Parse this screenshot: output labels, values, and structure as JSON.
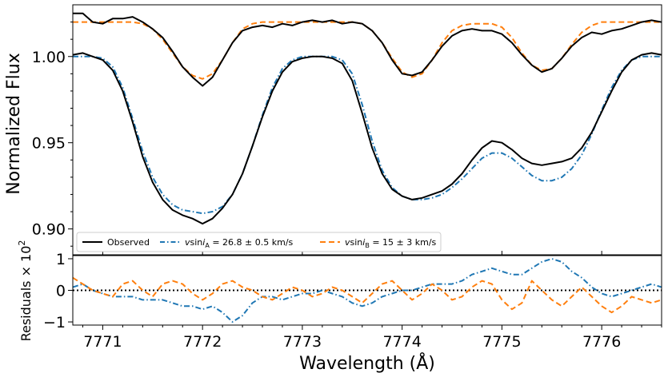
{
  "chart_data": [
    {
      "type": "line",
      "panel": "main",
      "ylabel": "Normalized Flux",
      "xlim": [
        7770.7,
        7776.6
      ],
      "ylim": [
        0.885,
        1.03
      ],
      "yticks": [
        {
          "value": 0.9,
          "label": "0.90"
        },
        {
          "value": 0.95,
          "label": "0.95"
        },
        {
          "value": 1.0,
          "label": "1.00"
        }
      ],
      "legend": {
        "placement": "bottom",
        "entries": [
          {
            "label": "Observed",
            "color": "#000000",
            "style": "solid"
          },
          {
            "label_main": "v",
            "label_sin": "sin",
            "label_i": "i",
            "label_sub": "A",
            "label_rest": " = 26.8 ± 0.5 km/s",
            "color": "#1f77b4",
            "style": "dashdot"
          },
          {
            "label_main": "v",
            "label_sin": "sin",
            "label_i": "i",
            "label_sub": "B",
            "label_rest": " = 15 ± 3 km/s",
            "color": "#ff7f0e",
            "style": "dashed"
          }
        ]
      },
      "series": [
        {
          "name": "Observed (upper)",
          "color": "#000000",
          "x": [
            7770.7,
            7770.8,
            7770.9,
            7771.0,
            7771.1,
            7771.2,
            7771.3,
            7771.4,
            7771.5,
            7771.6,
            7771.7,
            7771.8,
            7771.9,
            7772.0,
            7772.1,
            7772.2,
            7772.3,
            7772.4,
            7772.5,
            7772.6,
            7772.7,
            7772.8,
            7772.9,
            7773.0,
            7773.1,
            7773.2,
            7773.3,
            7773.4,
            7773.5,
            7773.6,
            7773.7,
            7773.8,
            7773.9,
            7774.0,
            7774.1,
            7774.2,
            7774.3,
            7774.4,
            7774.5,
            7774.6,
            7774.7,
            7774.8,
            7774.9,
            7775.0,
            7775.1,
            7775.2,
            7775.3,
            7775.4,
            7775.5,
            7775.6,
            7775.7,
            7775.8,
            7775.9,
            7776.0,
            7776.1,
            7776.2,
            7776.3,
            7776.4,
            7776.5,
            7776.6
          ],
          "y": [
            1.025,
            1.025,
            1.02,
            1.019,
            1.022,
            1.022,
            1.023,
            1.02,
            1.016,
            1.011,
            1.003,
            0.994,
            0.988,
            0.983,
            0.988,
            0.998,
            1.008,
            1.015,
            1.017,
            1.018,
            1.017,
            1.019,
            1.018,
            1.02,
            1.021,
            1.02,
            1.021,
            1.019,
            1.02,
            1.019,
            1.015,
            1.008,
            0.998,
            0.99,
            0.989,
            0.991,
            0.998,
            1.006,
            1.012,
            1.015,
            1.016,
            1.015,
            1.015,
            1.013,
            1.008,
            1.001,
            0.995,
            0.991,
            0.993,
            0.999,
            1.006,
            1.011,
            1.014,
            1.013,
            1.015,
            1.016,
            1.018,
            1.02,
            1.021,
            1.02
          ]
        },
        {
          "name": "Observed (lower)",
          "color": "#000000",
          "x": [
            7770.7,
            7770.8,
            7770.9,
            7771.0,
            7771.1,
            7771.2,
            7771.3,
            7771.4,
            7771.5,
            7771.6,
            7771.7,
            7771.8,
            7771.9,
            7772.0,
            7772.1,
            7772.2,
            7772.3,
            7772.4,
            7772.5,
            7772.6,
            7772.7,
            7772.8,
            7772.9,
            7773.0,
            7773.1,
            7773.2,
            7773.3,
            7773.4,
            7773.5,
            7773.6,
            7773.7,
            7773.8,
            7773.9,
            7774.0,
            7774.1,
            7774.2,
            7774.3,
            7774.4,
            7774.5,
            7774.6,
            7774.7,
            7774.8,
            7774.9,
            7775.0,
            7775.1,
            7775.2,
            7775.3,
            7775.4,
            7775.5,
            7775.6,
            7775.7,
            7775.8,
            7775.9,
            7776.0,
            7776.1,
            7776.2,
            7776.3,
            7776.4,
            7776.5,
            7776.6
          ],
          "y": [
            1.001,
            1.002,
            1.0,
            0.998,
            0.992,
            0.98,
            0.962,
            0.942,
            0.927,
            0.917,
            0.911,
            0.908,
            0.906,
            0.903,
            0.906,
            0.912,
            0.92,
            0.932,
            0.948,
            0.965,
            0.98,
            0.991,
            0.997,
            0.999,
            1.0,
            1.0,
            0.999,
            0.996,
            0.986,
            0.967,
            0.947,
            0.932,
            0.923,
            0.919,
            0.917,
            0.918,
            0.92,
            0.922,
            0.926,
            0.932,
            0.94,
            0.947,
            0.951,
            0.95,
            0.946,
            0.941,
            0.938,
            0.937,
            0.938,
            0.939,
            0.941,
            0.947,
            0.956,
            0.968,
            0.98,
            0.991,
            0.998,
            1.001,
            1.002,
            1.001
          ]
        },
        {
          "name": "vsini_A fit",
          "color": "#1f77b4",
          "x": [
            7770.7,
            7770.8,
            7770.9,
            7771.0,
            7771.1,
            7771.2,
            7771.3,
            7771.4,
            7771.5,
            7771.6,
            7771.7,
            7771.8,
            7771.9,
            7772.0,
            7772.1,
            7772.2,
            7772.3,
            7772.4,
            7772.5,
            7772.6,
            7772.7,
            7772.8,
            7772.9,
            7773.0,
            7773.1,
            7773.2,
            7773.3,
            7773.4,
            7773.5,
            7773.6,
            7773.7,
            7773.8,
            7773.9,
            7774.0,
            7774.1,
            7774.2,
            7774.3,
            7774.4,
            7774.5,
            7774.6,
            7774.7,
            7774.8,
            7774.9,
            7775.0,
            7775.1,
            7775.2,
            7775.3,
            7775.4,
            7775.5,
            7775.6,
            7775.7,
            7775.8,
            7775.9,
            7776.0,
            7776.1,
            7776.2,
            7776.3,
            7776.4,
            7776.5,
            7776.6
          ],
          "y": [
            1.0,
            1.0,
            1.0,
            0.999,
            0.994,
            0.982,
            0.964,
            0.945,
            0.93,
            0.92,
            0.914,
            0.911,
            0.91,
            0.909,
            0.91,
            0.913,
            0.92,
            0.932,
            0.948,
            0.966,
            0.982,
            0.993,
            0.998,
            1.0,
            1.0,
            1.0,
            1.0,
            0.998,
            0.99,
            0.972,
            0.951,
            0.934,
            0.924,
            0.919,
            0.917,
            0.917,
            0.918,
            0.92,
            0.924,
            0.929,
            0.935,
            0.941,
            0.944,
            0.944,
            0.941,
            0.936,
            0.931,
            0.928,
            0.928,
            0.93,
            0.935,
            0.943,
            0.955,
            0.969,
            0.982,
            0.992,
            0.998,
            1.0,
            1.0,
            1.0
          ]
        },
        {
          "name": "vsini_B fit",
          "color": "#ff7f0e",
          "x": [
            7770.7,
            7770.8,
            7770.9,
            7771.0,
            7771.1,
            7771.2,
            7771.3,
            7771.4,
            7771.5,
            7771.6,
            7771.7,
            7771.8,
            7771.9,
            7772.0,
            7772.1,
            7772.2,
            7772.3,
            7772.4,
            7772.5,
            7772.6,
            7772.7,
            7772.8,
            7772.9,
            7773.0,
            7773.1,
            7773.2,
            7773.3,
            7773.4,
            7773.5,
            7773.6,
            7773.7,
            7773.8,
            7773.9,
            7774.0,
            7774.1,
            7774.2,
            7774.3,
            7774.4,
            7774.5,
            7774.6,
            7774.7,
            7774.8,
            7774.9,
            7775.0,
            7775.1,
            7775.2,
            7775.3,
            7775.4,
            7775.5,
            7775.6,
            7775.7,
            7775.8,
            7775.9,
            7776.0,
            7776.1,
            7776.2,
            7776.3,
            7776.4,
            7776.5,
            7776.6
          ],
          "y": [
            1.02,
            1.02,
            1.02,
            1.02,
            1.02,
            1.02,
            1.02,
            1.019,
            1.016,
            1.01,
            1.002,
            0.994,
            0.989,
            0.987,
            0.99,
            0.998,
            1.008,
            1.016,
            1.019,
            1.02,
            1.02,
            1.02,
            1.02,
            1.02,
            1.02,
            1.02,
            1.02,
            1.02,
            1.02,
            1.019,
            1.015,
            1.008,
            0.999,
            0.991,
            0.988,
            0.99,
            0.998,
            1.008,
            1.015,
            1.018,
            1.019,
            1.019,
            1.019,
            1.017,
            1.011,
            1.002,
            0.995,
            0.992,
            0.993,
            0.999,
            1.007,
            1.014,
            1.018,
            1.02,
            1.02,
            1.02,
            1.02,
            1.02,
            1.02,
            1.02
          ]
        }
      ]
    },
    {
      "type": "line",
      "panel": "residuals",
      "xlabel": "Wavelength (Å)",
      "ylabel_main": "Residuals × 10",
      "ylabel_sup": "2",
      "xlim": [
        7770.7,
        7776.6
      ],
      "ylim": [
        -1.1,
        1.1
      ],
      "xticks": [
        {
          "value": 7771,
          "label": "7771"
        },
        {
          "value": 7772,
          "label": "7772"
        },
        {
          "value": 7773,
          "label": "7773"
        },
        {
          "value": 7774,
          "label": "7774"
        },
        {
          "value": 7775,
          "label": "7775"
        },
        {
          "value": 7776,
          "label": "7776"
        }
      ],
      "yticks": [
        {
          "value": -1,
          "label": "−1"
        },
        {
          "value": 0,
          "label": "0"
        },
        {
          "value": 1,
          "label": "1"
        }
      ],
      "zero_line": true,
      "series": [
        {
          "name": "Residual A",
          "color": "#1f77b4",
          "x": [
            7770.7,
            7770.8,
            7770.9,
            7771.0,
            7771.1,
            7771.2,
            7771.3,
            7771.4,
            7771.5,
            7771.6,
            7771.7,
            7771.8,
            7771.9,
            7772.0,
            7772.1,
            7772.2,
            7772.3,
            7772.4,
            7772.5,
            7772.6,
            7772.7,
            7772.8,
            7772.9,
            7773.0,
            7773.1,
            7773.2,
            7773.3,
            7773.4,
            7773.5,
            7773.6,
            7773.7,
            7773.8,
            7773.9,
            7774.0,
            7774.1,
            7774.2,
            7774.3,
            7774.4,
            7774.5,
            7774.6,
            7774.7,
            7774.8,
            7774.9,
            7775.0,
            7775.1,
            7775.2,
            7775.3,
            7775.4,
            7775.5,
            7775.6,
            7775.7,
            7775.8,
            7775.9,
            7776.0,
            7776.1,
            7776.2,
            7776.3,
            7776.4,
            7776.5,
            7776.6
          ],
          "y": [
            0.1,
            0.2,
            0.0,
            -0.1,
            -0.2,
            -0.2,
            -0.2,
            -0.3,
            -0.3,
            -0.3,
            -0.4,
            -0.5,
            -0.5,
            -0.6,
            -0.5,
            -0.7,
            -1.0,
            -0.8,
            -0.4,
            -0.2,
            -0.2,
            -0.3,
            -0.2,
            -0.1,
            -0.1,
            0.0,
            -0.1,
            -0.2,
            -0.4,
            -0.5,
            -0.4,
            -0.2,
            -0.1,
            0.0,
            0.0,
            0.1,
            0.2,
            0.2,
            0.2,
            0.3,
            0.5,
            0.6,
            0.7,
            0.6,
            0.5,
            0.5,
            0.7,
            0.9,
            1.0,
            0.9,
            0.6,
            0.4,
            0.1,
            -0.1,
            -0.2,
            -0.1,
            0.0,
            0.1,
            0.2,
            0.1
          ]
        },
        {
          "name": "Residual B",
          "color": "#ff7f0e",
          "x": [
            7770.7,
            7770.8,
            7770.9,
            7771.0,
            7771.1,
            7771.2,
            7771.3,
            7771.4,
            7771.5,
            7771.6,
            7771.7,
            7771.8,
            7771.9,
            7772.0,
            7772.1,
            7772.2,
            7772.3,
            7772.4,
            7772.5,
            7772.6,
            7772.7,
            7772.8,
            7772.9,
            7773.0,
            7773.1,
            7773.2,
            7773.3,
            7773.4,
            7773.5,
            7773.6,
            7773.7,
            7773.8,
            7773.9,
            7774.0,
            7774.1,
            7774.2,
            7774.3,
            7774.4,
            7774.5,
            7774.6,
            7774.7,
            7774.8,
            7774.9,
            7775.0,
            7775.1,
            7775.2,
            7775.3,
            7775.4,
            7775.5,
            7775.6,
            7775.7,
            7775.8,
            7775.9,
            7776.0,
            7776.1,
            7776.2,
            7776.3,
            7776.4,
            7776.5,
            7776.6
          ],
          "y": [
            0.4,
            0.2,
            0.0,
            -0.1,
            -0.2,
            0.2,
            0.3,
            0.0,
            -0.2,
            0.2,
            0.3,
            0.2,
            -0.1,
            -0.3,
            -0.1,
            0.2,
            0.3,
            0.1,
            0.0,
            -0.2,
            -0.3,
            -0.1,
            0.1,
            0.0,
            -0.2,
            -0.1,
            0.1,
            0.0,
            -0.2,
            -0.4,
            -0.1,
            0.2,
            0.3,
            0.0,
            -0.3,
            -0.1,
            0.2,
            0.0,
            -0.3,
            -0.2,
            0.1,
            0.3,
            0.2,
            -0.3,
            -0.6,
            -0.4,
            0.3,
            0.0,
            -0.3,
            -0.5,
            -0.2,
            0.1,
            -0.2,
            -0.5,
            -0.7,
            -0.5,
            -0.2,
            -0.3,
            -0.4,
            -0.3
          ]
        }
      ]
    }
  ]
}
